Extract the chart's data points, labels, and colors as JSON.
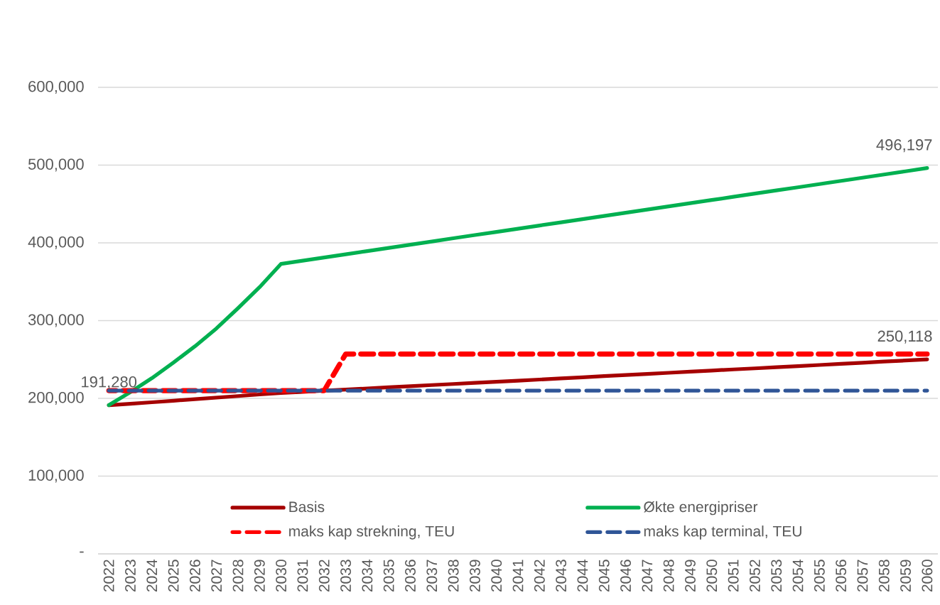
{
  "chart_data": {
    "type": "line",
    "categories": [
      "2022",
      "2023",
      "2024",
      "2025",
      "2026",
      "2027",
      "2028",
      "2029",
      "2030",
      "2031",
      "2032",
      "2033",
      "2034",
      "2035",
      "2036",
      "2037",
      "2038",
      "2039",
      "2040",
      "2041",
      "2042",
      "2043",
      "2044",
      "2045",
      "2046",
      "2047",
      "2048",
      "2049",
      "2050",
      "2051",
      "2052",
      "2053",
      "2054",
      "2055",
      "2056",
      "2057",
      "2058",
      "2059",
      "2060"
    ],
    "series": [
      {
        "name": "Basis",
        "color": "#a50000",
        "line_style": "solid",
        "values": [
          191280,
          193000,
          195000,
          197000,
          199000,
          201000,
          203000,
          205000,
          207000,
          208400,
          209900,
          211300,
          212700,
          214200,
          215600,
          217100,
          218500,
          219900,
          221400,
          222800,
          224200,
          225700,
          227100,
          228600,
          230000,
          231400,
          232900,
          234300,
          235800,
          237200,
          238600,
          240100,
          241500,
          242900,
          244400,
          245800,
          247300,
          248700,
          250118
        ]
      },
      {
        "name": "Økte energipriser",
        "color": "#00b050",
        "line_style": "solid",
        "values": [
          191280,
          208000,
          226000,
          246000,
          267000,
          290000,
          316000,
          343000,
          373000,
          377100,
          381200,
          385300,
          389400,
          393500,
          397600,
          401700,
          405900,
          410000,
          414100,
          418200,
          422300,
          426400,
          430500,
          434600,
          438700,
          442800,
          446900,
          451000,
          455100,
          459200,
          463300,
          467400,
          471500,
          475600,
          479700,
          483800,
          487900,
          492000,
          496197
        ]
      },
      {
        "name": "maks kap strekning, TEU",
        "color": "#ff0000",
        "line_style": "dashed",
        "values": [
          210000,
          210000,
          210000,
          210000,
          210000,
          210000,
          210000,
          210000,
          210000,
          210000,
          210000,
          257000,
          257000,
          257000,
          257000,
          257000,
          257000,
          257000,
          257000,
          257000,
          257000,
          257000,
          257000,
          257000,
          257000,
          257000,
          257000,
          257000,
          257000,
          257000,
          257000,
          257000,
          257000,
          257000,
          257000,
          257000,
          257000,
          257000,
          257000
        ]
      },
      {
        "name": "maks kap terminal, TEU",
        "color": "#2f5597",
        "line_style": "dashed",
        "values": [
          210000,
          210000,
          210000,
          210000,
          210000,
          210000,
          210000,
          210000,
          210000,
          210000,
          210000,
          210000,
          210000,
          210000,
          210000,
          210000,
          210000,
          210000,
          210000,
          210000,
          210000,
          210000,
          210000,
          210000,
          210000,
          210000,
          210000,
          210000,
          210000,
          210000,
          210000,
          210000,
          210000,
          210000,
          210000,
          210000,
          210000,
          210000,
          210000
        ]
      }
    ],
    "ylim": [
      0,
      600000
    ],
    "yticks": [
      {
        "value": 0,
        "label": "-"
      },
      {
        "value": 100000,
        "label": "100,000"
      },
      {
        "value": 200000,
        "label": "200,000"
      },
      {
        "value": 300000,
        "label": "300,000"
      },
      {
        "value": 400000,
        "label": "400,000"
      },
      {
        "value": 500000,
        "label": "500,000"
      },
      {
        "value": 600000,
        "label": "600,000"
      }
    ],
    "grid": "y",
    "legend": "bottom",
    "marker": "none",
    "annotations": [
      {
        "text": "191,280",
        "x": "2022",
        "y": 191280
      },
      {
        "text": "496,197",
        "x": "2060",
        "y": 496197
      },
      {
        "text": "250,118",
        "x": "2060",
        "y": 250118
      }
    ]
  }
}
